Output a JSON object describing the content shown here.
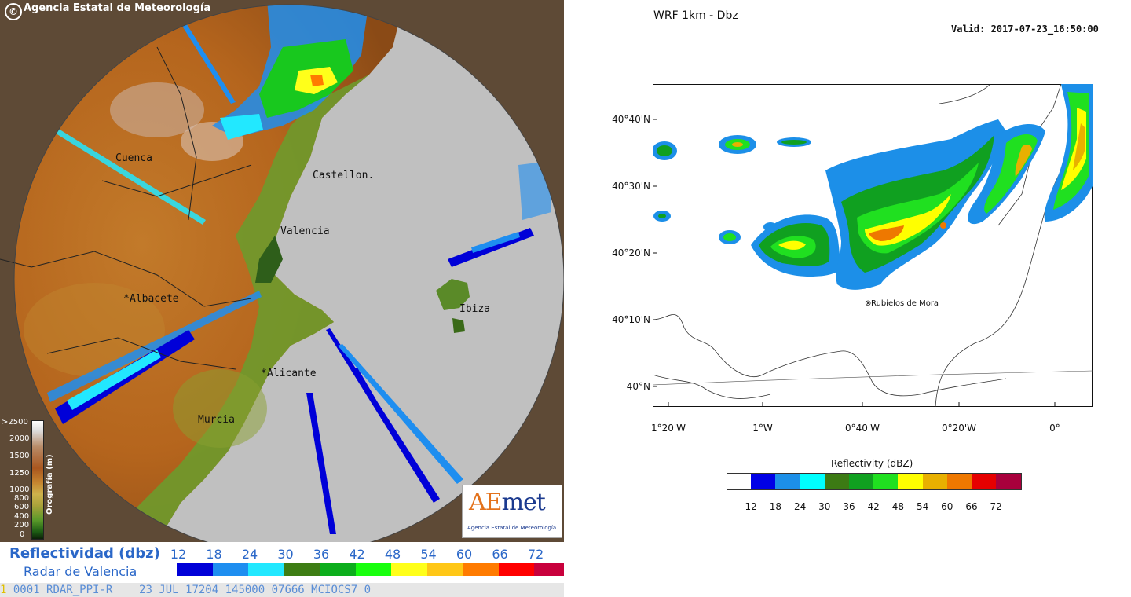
{
  "radar": {
    "agency_title": "Agencia Estatal de Meteorología",
    "copyright_symbol": "©",
    "cities": [
      {
        "name": "Cuenca",
        "marker": ""
      },
      {
        "name": "Castellon.",
        "marker": ""
      },
      {
        "name": "Valencia",
        "marker": ""
      },
      {
        "name": "Albacete",
        "marker": "*"
      },
      {
        "name": "Alicante",
        "marker": "*"
      },
      {
        "name": "Murcia",
        "marker": ""
      },
      {
        "name": "Ibiza",
        "marker": ""
      }
    ],
    "elevation_scale": {
      "label": "Orografía (m)",
      "ticks": [
        ">2500",
        "2000",
        "1500",
        "1250",
        "1000",
        "800",
        "600",
        "400",
        "200",
        "0"
      ]
    },
    "logo": {
      "brand_a": "A",
      "brand_e": "E",
      "brand_rest": "met",
      "tagline": "Agencia Estatal de Meteorología"
    },
    "legend": {
      "title": "Reflectividad (dbz)",
      "subtitle": "Radar de Valencia",
      "values": [
        "12",
        "18",
        "24",
        "30",
        "36",
        "42",
        "48",
        "54",
        "60",
        "66",
        "72"
      ],
      "colors": [
        "#0000d8",
        "#1e8ef0",
        "#22e8ff",
        "#3d7d14",
        "#0cae1c",
        "#18ff0e",
        "#ffff1a",
        "#ffc716",
        "#ff7b00",
        "#ff0000",
        "#c8003c"
      ]
    },
    "status_line": {
      "prefix": "1",
      "text": "0001 RDAR_PPI-R    23 JUL 17204 145000 07666 MCIOCS7 0"
    }
  },
  "wrf": {
    "title": "WRF 1km - Dbz",
    "valid": "Valid: 2017-07-23_16:50:00",
    "place_label": "Rubielos de Mora",
    "y_ticks": [
      "40°40'N",
      "40°30'N",
      "40°20'N",
      "40°10'N",
      "40°N"
    ],
    "x_ticks": [
      "1°20'W",
      "1°W",
      "0°40'W",
      "0°20'W",
      "0°"
    ],
    "colorbar": {
      "title": "Reflectivity  (dBZ)",
      "values": [
        "12",
        "18",
        "24",
        "30",
        "36",
        "42",
        "48",
        "54",
        "60",
        "66",
        "72"
      ],
      "colors": [
        "#ffffff",
        "#0000e6",
        "#1c8fe8",
        "#00ffff",
        "#3c7a14",
        "#10a020",
        "#20e020",
        "#ffff00",
        "#e8b000",
        "#ee7800",
        "#e60000",
        "#a8003c"
      ]
    }
  }
}
